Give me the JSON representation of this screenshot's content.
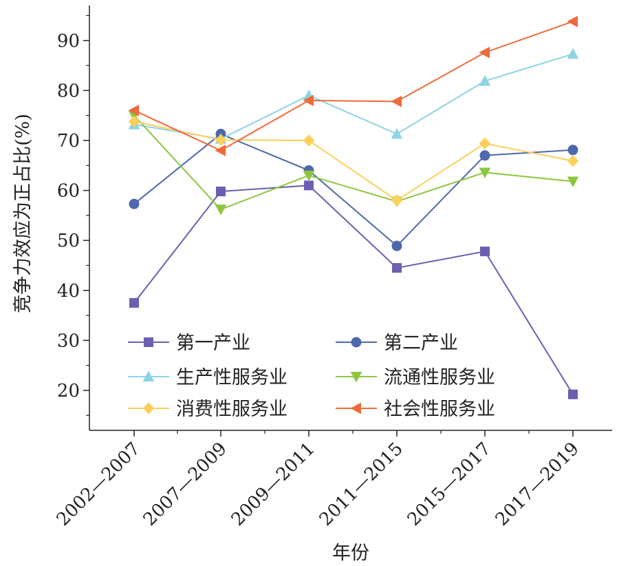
{
  "chart_data": {
    "type": "line",
    "categories": [
      "2002—2007",
      "2007—2009",
      "2009—2011",
      "2011—2015",
      "2015—2017",
      "2017—2019"
    ],
    "xlabel": "年份",
    "ylabel": "竞争力效应为正占比(%)",
    "ylim": [
      12,
      97
    ],
    "yticks": [
      20,
      30,
      40,
      50,
      60,
      70,
      80,
      90
    ],
    "grid": false,
    "legend": {
      "placement": "bottom-left",
      "columns": 2
    },
    "series": [
      {
        "name": "第一产业",
        "color": "#6a5fb0",
        "marker": "square",
        "values": [
          37.5,
          59.8,
          61.0,
          44.5,
          47.8,
          19.2
        ]
      },
      {
        "name": "第二产业",
        "color": "#4d68ac",
        "marker": "circle",
        "values": [
          57.3,
          71.3,
          64.0,
          48.9,
          67.0,
          68.1
        ]
      },
      {
        "name": "生产性服务业",
        "color": "#8dd3e6",
        "marker": "triangle-up",
        "values": [
          73.2,
          70.3,
          79.0,
          71.3,
          81.9,
          87.3
        ]
      },
      {
        "name": "流通性服务业",
        "color": "#8cc63f",
        "marker": "triangle-down",
        "values": [
          75.0,
          56.2,
          63.0,
          57.8,
          63.6,
          61.8
        ]
      },
      {
        "name": "消费性服务业",
        "color": "#fbd05a",
        "marker": "diamond",
        "values": [
          73.8,
          70.1,
          70.0,
          58.0,
          69.4,
          65.9
        ]
      },
      {
        "name": "社会性服务业",
        "color": "#ee6a3a",
        "marker": "triangle-left",
        "values": [
          76.0,
          68.0,
          78.0,
          77.8,
          87.6,
          93.8
        ]
      }
    ]
  }
}
